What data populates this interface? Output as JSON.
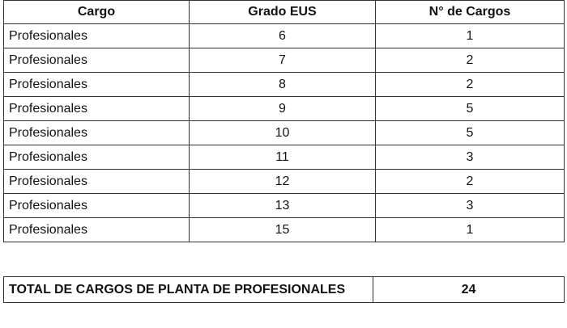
{
  "table": {
    "headers": [
      "Cargo",
      "Grado EUS",
      "N° de Cargos"
    ],
    "rows": [
      [
        "Profesionales",
        "6",
        "1"
      ],
      [
        "Profesionales",
        "7",
        "2"
      ],
      [
        "Profesionales",
        "8",
        "2"
      ],
      [
        "Profesionales",
        "9",
        "5"
      ],
      [
        "Profesionales",
        "10",
        "5"
      ],
      [
        "Profesionales",
        "11",
        "3"
      ],
      [
        "Profesionales",
        "12",
        "2"
      ],
      [
        "Profesionales",
        "13",
        "3"
      ],
      [
        "Profesionales",
        "15",
        "1"
      ]
    ]
  },
  "total": {
    "label": "TOTAL DE CARGOS DE PLANTA DE PROFESIONALES",
    "value": "24"
  }
}
